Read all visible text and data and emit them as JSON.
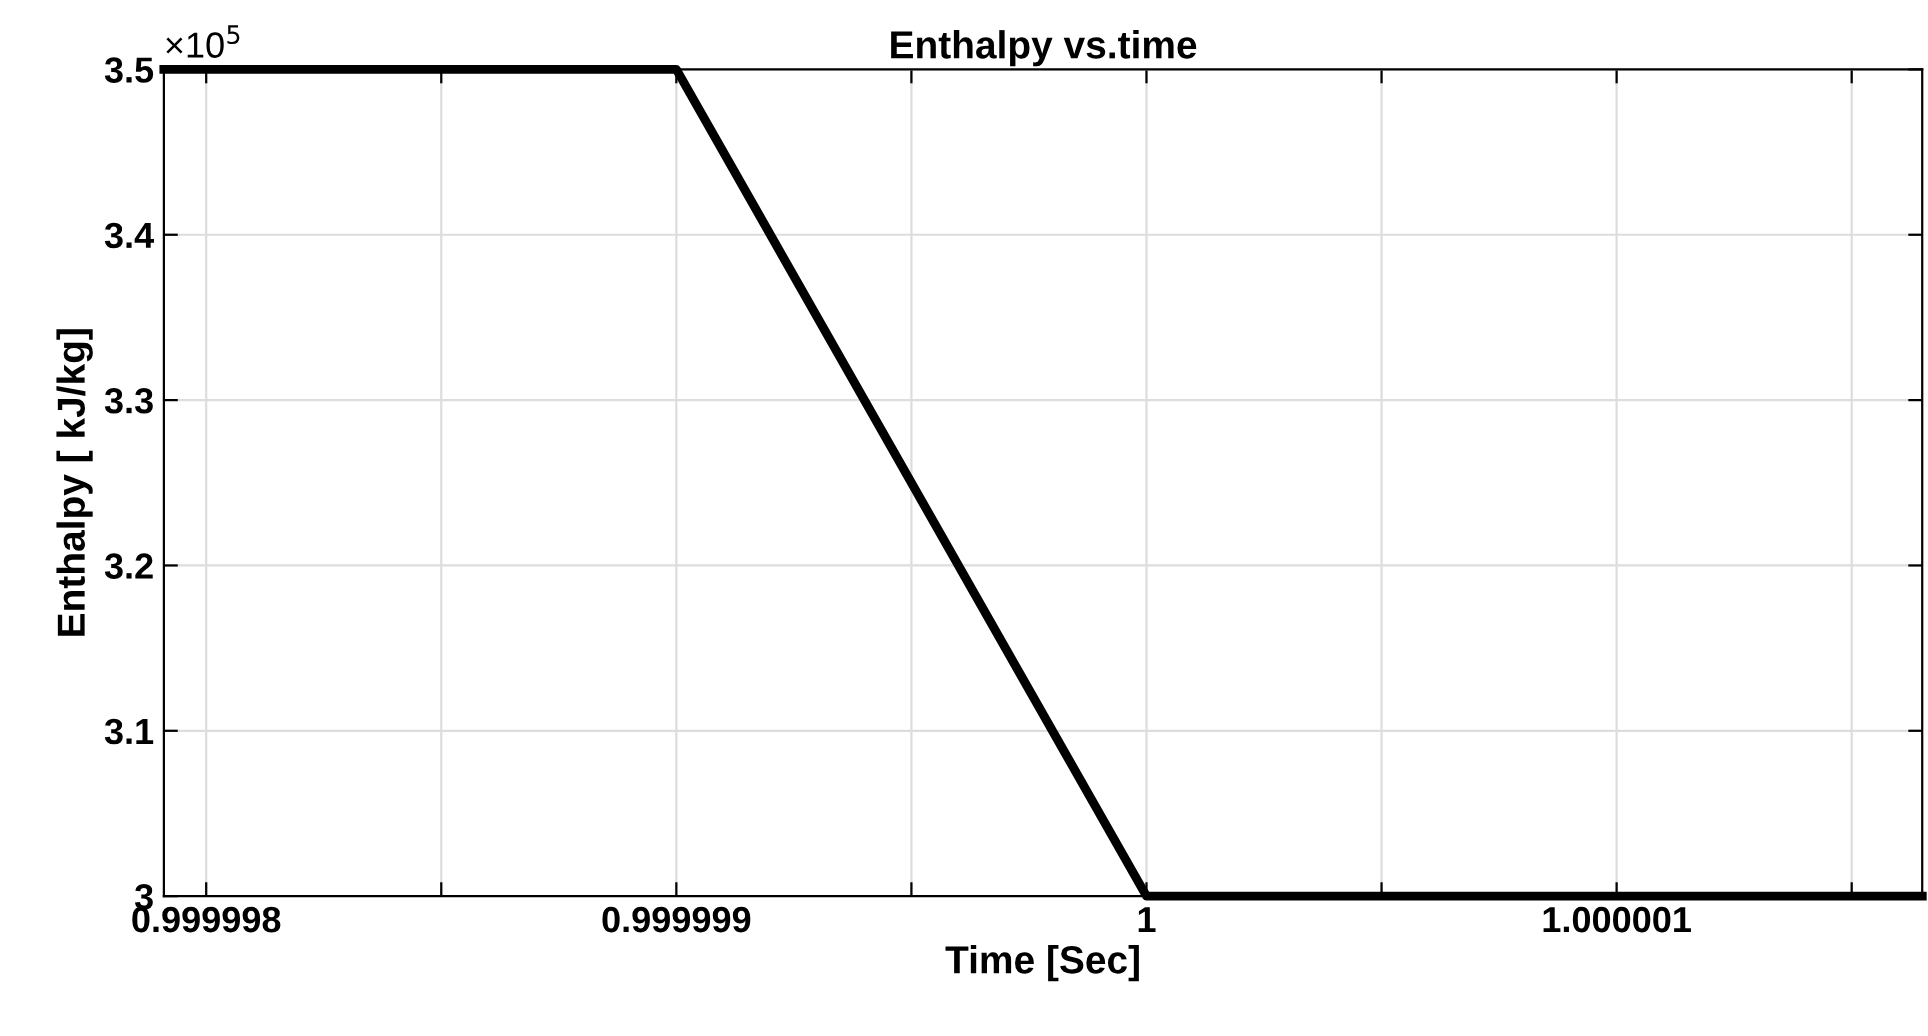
{
  "chart_data": {
    "type": "line",
    "title": "Enthalpy vs.time",
    "xlabel": "Time [Sec]",
    "ylabel": "Enthalpy [ kJ/kg]",
    "annotations": [
      "×10$^{5}$"
    ],
    "x": [
      0.99999791,
      0.999999,
      1,
      1.00000165
    ],
    "series": [
      {
        "color": "#000000",
        "values": [
          3.5,
          3.5,
          3,
          3
        ]
      }
    ],
    "xlim": [
      0.99999791,
      1.00000165
    ],
    "xticks": [
      0.999998,
      {
        "value": 0.9999985,
        "label": null
      },
      0.999999,
      {
        "value": 0.9999995,
        "label": null
      },
      1,
      {
        "value": 1.0000005,
        "label": null
      },
      1.000001,
      {
        "value": 1.0000015,
        "label": null
      }
    ],
    "ylim": [
      3,
      3.5
    ],
    "yticks": [
      3,
      3.1,
      3.2,
      3.3,
      3.4,
      3.5
    ],
    "grid": true,
    "line_style": "solid",
    "marker": "none"
  }
}
